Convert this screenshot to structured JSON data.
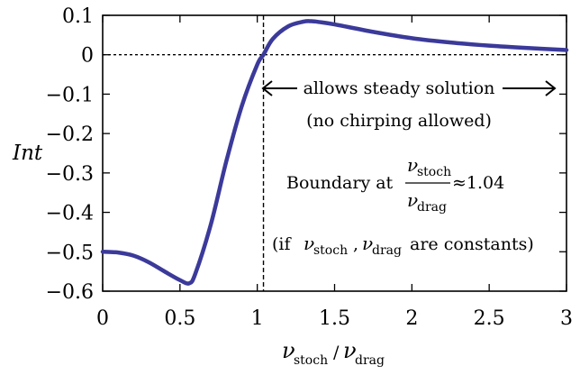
{
  "chart_data": {
    "type": "line",
    "xlabel": "ν_stoch/ν_drag",
    "xlabel_parts": {
      "num": "ν",
      "num_sub": "stoch",
      "den": "ν",
      "den_sub": "drag"
    },
    "ylabel": "Int",
    "xlim": [
      0,
      3
    ],
    "ylim": [
      -0.6,
      0.1
    ],
    "x_ticks": [
      0,
      0.5,
      1,
      1.5,
      2,
      2.5,
      3
    ],
    "x_tick_labels": [
      "0",
      "0.5",
      "1",
      "1.5",
      "2",
      "2.5",
      "3"
    ],
    "y_ticks": [
      0.1,
      0,
      -0.1,
      -0.2,
      -0.3,
      -0.4,
      -0.5,
      -0.6
    ],
    "y_tick_labels": [
      "0.1",
      "0",
      "−0.1",
      "−0.2",
      "−0.3",
      "−0.4",
      "−0.5",
      "−0.6"
    ],
    "grid": false,
    "series_color": "#3b3a9a",
    "series": [
      {
        "x": [
          0,
          0.1,
          0.2,
          0.3,
          0.4,
          0.5,
          0.56,
          0.6,
          0.7,
          0.8,
          0.9,
          1.0,
          1.04,
          1.1,
          1.2,
          1.3,
          1.35,
          1.4,
          1.5,
          1.75,
          2.0,
          2.25,
          2.5,
          2.75,
          3.0
        ],
        "y": [
          -0.5,
          -0.502,
          -0.51,
          -0.527,
          -0.55,
          -0.572,
          -0.58,
          -0.555,
          -0.43,
          -0.27,
          -0.13,
          -0.025,
          0.0,
          0.04,
          0.072,
          0.084,
          0.085,
          0.083,
          0.077,
          0.058,
          0.042,
          0.031,
          0.023,
          0.017,
          0.012
        ]
      }
    ],
    "reference_lines": {
      "vertical_x": 1.04,
      "horizontal_y": 0
    },
    "annotations": {
      "steady_line1": "allows steady solution",
      "steady_line2": "(no chirping allowed)",
      "boundary_prefix": "Boundary at",
      "boundary_num": "ν",
      "boundary_num_sub": "stoch",
      "boundary_den": "ν",
      "boundary_den_sub": "drag",
      "boundary_value": "≈1.04",
      "const_open": "(if",
      "const_v1": "ν",
      "const_v1_sub": "stoch",
      "const_comma": ",",
      "const_v2": "ν",
      "const_v2_sub": "drag",
      "const_tail": "are constants)"
    }
  }
}
